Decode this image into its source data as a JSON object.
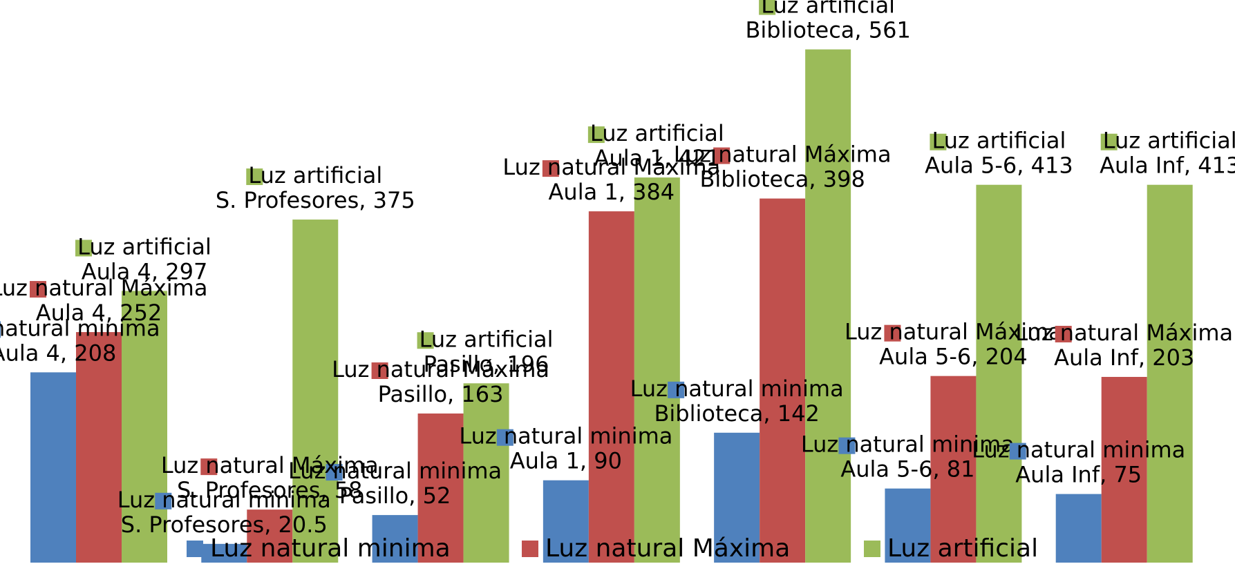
{
  "chart_data": {
    "type": "bar",
    "categories": [
      "Aula 4",
      "S. Profesores",
      "Pasillo",
      "Aula 1",
      "Biblioteca",
      "Aula 5-6",
      "Aula Inf"
    ],
    "series": [
      {
        "name": "Luz natural minima",
        "color": "#4f81bd",
        "values": [
          208,
          20.5,
          52,
          90,
          142,
          81,
          75
        ]
      },
      {
        "name": "Luz natural Máxima",
        "color": "#c0504d",
        "values": [
          252,
          58,
          163,
          384,
          398,
          204,
          203
        ]
      },
      {
        "name": "Luz artificial",
        "color": "#9bbb59",
        "values": [
          297,
          375,
          196,
          421,
          561,
          413,
          413
        ]
      }
    ],
    "ylim": [
      0,
      615
    ],
    "legend": "bottom"
  }
}
